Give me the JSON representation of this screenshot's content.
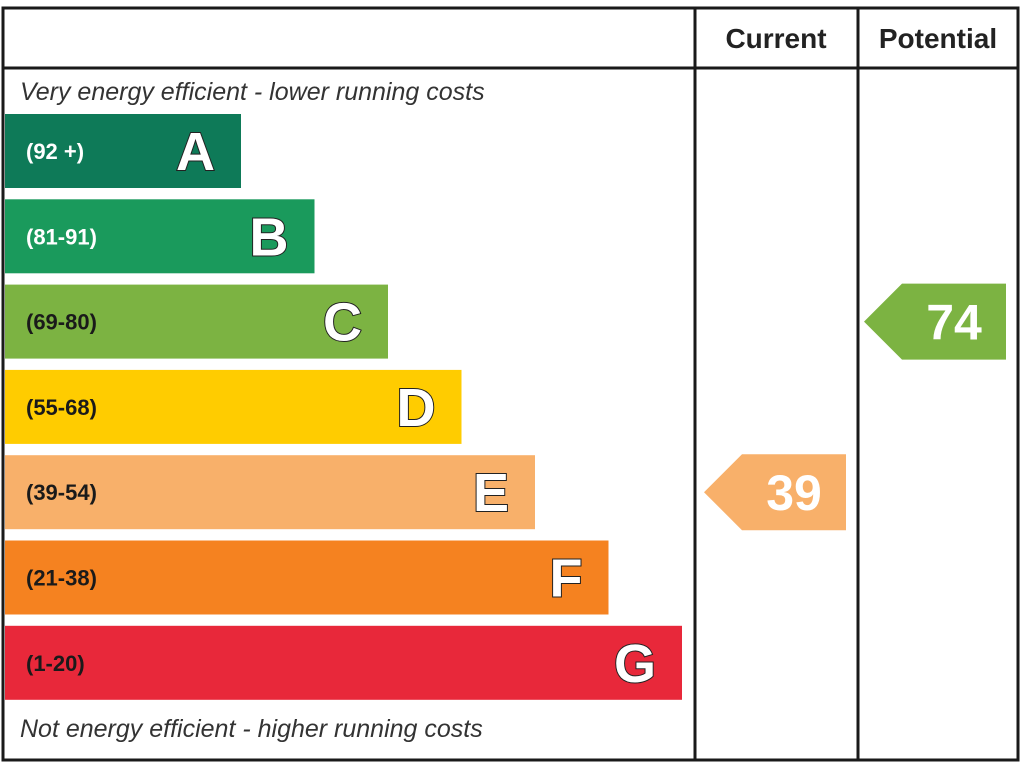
{
  "chart_data": {
    "type": "bar",
    "headers": {
      "current": "Current",
      "potential": "Potential"
    },
    "top_caption": "Very energy efficient - lower running costs",
    "bottom_caption": "Not energy efficient - higher running costs",
    "bands": [
      {
        "letter": "A",
        "range": "(92 +)",
        "color": "#0e7a58",
        "range_color": "#ffffff"
      },
      {
        "letter": "B",
        "range": "(81-91)",
        "color": "#1a9a5c",
        "range_color": "#ffffff"
      },
      {
        "letter": "C",
        "range": "(69-80)",
        "color": "#7cb342",
        "range_color": "#1a1a1a"
      },
      {
        "letter": "D",
        "range": "(55-68)",
        "color": "#ffcc00",
        "range_color": "#1a1a1a"
      },
      {
        "letter": "E",
        "range": "(39-54)",
        "color": "#f8b06a",
        "range_color": "#1a1a1a"
      },
      {
        "letter": "F",
        "range": "(21-38)",
        "color": "#f58220",
        "range_color": "#1a1a1a"
      },
      {
        "letter": "G",
        "range": "(1-20)",
        "color": "#e8283a",
        "range_color": "#1a1a1a"
      }
    ],
    "current": {
      "value": 39,
      "band": "E",
      "color": "#f8b06a"
    },
    "potential": {
      "value": 74,
      "band": "C",
      "color": "#7cb342"
    }
  }
}
